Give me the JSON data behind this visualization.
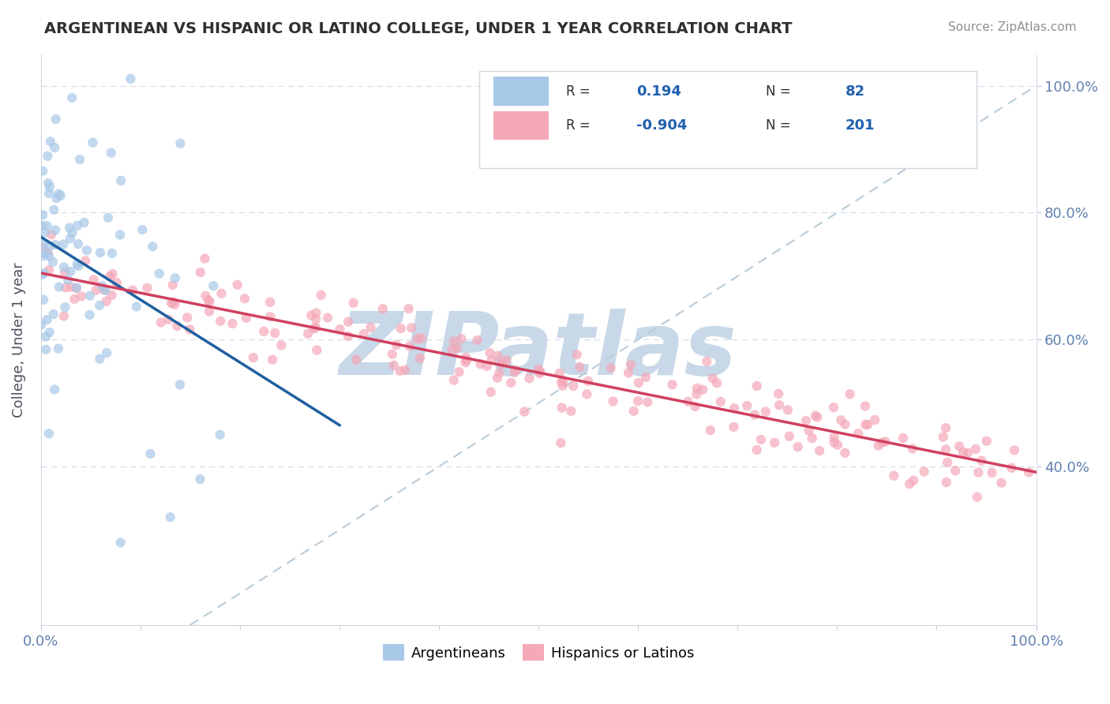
{
  "title": "ARGENTINEAN VS HISPANIC OR LATINO COLLEGE, UNDER 1 YEAR CORRELATION CHART",
  "source": "Source: ZipAtlas.com",
  "ylabel": "College, Under 1 year",
  "blue_R": 0.194,
  "blue_N": 82,
  "pink_R": -0.904,
  "pink_N": 201,
  "blue_color": "#a8c8e8",
  "pink_color": "#f4a8b8",
  "blue_line_color": "#2060a0",
  "pink_line_color": "#d04060",
  "dashed_line_color": "#b8ccd8",
  "watermark": "ZIPatlas",
  "watermark_color": "#c8d8e8",
  "background_color": "#ffffff",
  "title_color": "#303030",
  "source_color": "#909090",
  "legend_text_color": "#303030",
  "legend_value_color": "#2060b0",
  "tick_color": "#6080b0",
  "grid_color": "#d8dde8",
  "xlim": [
    0.0,
    1.0
  ],
  "ylim": [
    0.15,
    1.05
  ],
  "ytick_vals": [
    0.4,
    0.6,
    0.8,
    1.0
  ],
  "ytick_labels": [
    "40.0%",
    "60.0%",
    "80.0%",
    "100.0%"
  ]
}
